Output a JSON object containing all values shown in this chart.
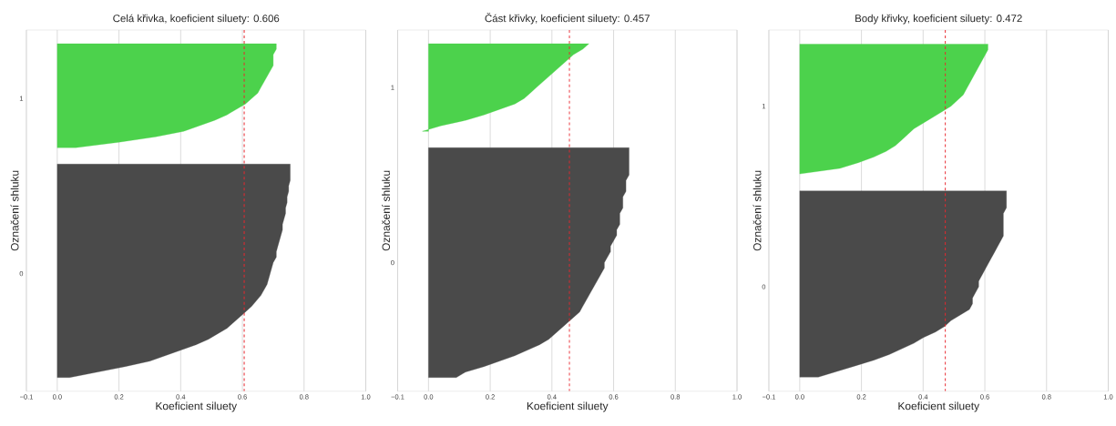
{
  "chart_data": [
    {
      "type": "area",
      "orientation": "horizontal",
      "title": "Celá křivka, koeficient siluety: 0.606",
      "xlabel": "Koeficient siluety",
      "ylabel": "Označení shluku",
      "categories": [
        null,
        null,
        null,
        null,
        null,
        null,
        null,
        null,
        null,
        null,
        null,
        null,
        "1",
        null,
        null,
        null,
        null,
        null,
        null,
        null,
        null,
        null,
        null,
        null,
        null,
        null,
        null,
        null,
        null,
        null,
        null,
        null,
        null,
        null,
        null,
        null,
        null,
        null,
        null,
        null,
        null,
        null,
        null,
        null,
        "0",
        null,
        null,
        null,
        null,
        null,
        null,
        null,
        null,
        null,
        null,
        null,
        null,
        null,
        null,
        null,
        null,
        null,
        null,
        null,
        null,
        null
      ],
      "series": [
        {
          "color": "#4cd24c",
          "values": [
            null,
            null,
            0.71,
            0.71,
            0.7,
            0.7,
            0.7,
            0.69,
            0.68,
            0.67,
            0.66,
            0.65,
            0.63,
            0.61,
            0.58,
            0.55,
            0.51,
            0.46,
            0.41,
            0.32,
            0.2,
            0.06,
            null,
            null,
            null,
            null,
            null,
            null,
            null,
            null,
            null,
            null,
            null,
            null,
            null,
            null,
            null,
            null,
            null,
            null,
            null,
            null,
            null,
            null,
            null,
            null,
            null,
            null,
            null,
            null,
            null,
            null,
            null,
            null,
            null,
            null,
            null,
            null,
            null,
            null,
            null,
            null,
            null,
            null,
            null,
            null
          ]
        },
        {
          "color": "#4a4a4a",
          "values": [
            null,
            null,
            null,
            null,
            null,
            null,
            null,
            null,
            null,
            null,
            null,
            null,
            null,
            null,
            null,
            null,
            null,
            null,
            null,
            null,
            null,
            null,
            null,
            null,
            0.755,
            0.755,
            0.755,
            0.755,
            0.75,
            0.75,
            0.745,
            0.745,
            0.74,
            0.74,
            0.735,
            0.73,
            0.73,
            0.725,
            0.72,
            0.715,
            0.71,
            0.71,
            0.7,
            0.695,
            0.69,
            0.685,
            0.68,
            0.67,
            0.66,
            0.645,
            0.63,
            0.61,
            0.59,
            0.57,
            0.55,
            0.52,
            0.49,
            0.45,
            0.4,
            0.35,
            0.3,
            0.22,
            0.13,
            0.04,
            null,
            null
          ]
        }
      ],
      "xlim": [
        -0.1,
        1.0
      ],
      "xticks": [
        {
          "value": -0.1,
          "label": "−0.1"
        },
        {
          "value": 0,
          "label": "0.0"
        },
        0.2,
        0.4,
        0.6,
        0.8,
        {
          "value": 1,
          "label": "1.0"
        }
      ],
      "grid": "x",
      "ref_lines": [
        {
          "axis": "x",
          "value": 0.606,
          "color": "#e8282f",
          "line_style": "dashed"
        }
      ]
    },
    {
      "type": "area",
      "orientation": "horizontal",
      "title": "Část křivky, koeficient siluety: 0.457",
      "xlabel": "Koeficient siluety",
      "ylabel": "Označení shluku",
      "categories": [
        null,
        null,
        null,
        null,
        null,
        null,
        null,
        null,
        null,
        null,
        "1",
        null,
        null,
        null,
        null,
        null,
        null,
        null,
        null,
        null,
        null,
        null,
        null,
        null,
        null,
        null,
        null,
        null,
        null,
        null,
        null,
        null,
        null,
        null,
        null,
        null,
        null,
        null,
        null,
        null,
        null,
        null,
        "0",
        null,
        null,
        null,
        null,
        null,
        null,
        null,
        null,
        null,
        null,
        null,
        null,
        null,
        null,
        null,
        null,
        null,
        null,
        null,
        null,
        null,
        null,
        null
      ],
      "series": [
        {
          "color": "#4cd24c",
          "values": [
            null,
            null,
            0.52,
            0.5,
            0.47,
            0.45,
            0.43,
            0.41,
            0.39,
            0.37,
            0.35,
            0.33,
            0.31,
            0.28,
            0.23,
            0.18,
            0.12,
            0.04,
            -0.02,
            null,
            null,
            null,
            null,
            null,
            null,
            null,
            null,
            null,
            null,
            null,
            null,
            null,
            null,
            null,
            null,
            null,
            null,
            null,
            null,
            null,
            null,
            null,
            null,
            null,
            null,
            null,
            null,
            null,
            null,
            null,
            null,
            null,
            null,
            null,
            null,
            null,
            null,
            null,
            null,
            null,
            null,
            null,
            null,
            null,
            null,
            null
          ]
        },
        {
          "color": "#4a4a4a",
          "values": [
            null,
            null,
            null,
            null,
            null,
            null,
            null,
            null,
            null,
            null,
            null,
            null,
            null,
            null,
            null,
            null,
            null,
            null,
            null,
            null,
            null,
            0.65,
            0.65,
            0.65,
            0.65,
            0.65,
            0.65,
            0.64,
            0.64,
            0.64,
            0.63,
            0.63,
            0.63,
            0.62,
            0.62,
            0.62,
            0.61,
            0.61,
            0.6,
            0.59,
            0.59,
            0.58,
            0.57,
            0.57,
            0.56,
            0.55,
            0.54,
            0.53,
            0.52,
            0.51,
            0.5,
            0.49,
            0.47,
            0.45,
            0.43,
            0.41,
            0.39,
            0.36,
            0.32,
            0.28,
            0.23,
            0.18,
            0.12,
            0.09,
            null,
            null
          ]
        }
      ],
      "xlim": [
        -0.1,
        1.0
      ],
      "xticks": [
        {
          "value": -0.1,
          "label": "−0.1"
        },
        {
          "value": 0,
          "label": "0.0"
        },
        0.2,
        0.4,
        0.6,
        0.8,
        {
          "value": 1,
          "label": "1.0"
        }
      ],
      "grid": "x",
      "ref_lines": [
        {
          "axis": "x",
          "value": 0.457,
          "color": "#e8282f",
          "line_style": "dashed"
        }
      ]
    },
    {
      "type": "area",
      "orientation": "horizontal",
      "title": "Body křivky, koeficient siluety: 0.472",
      "xlabel": "Koeficient siluety",
      "ylabel": "Označení shluku",
      "categories": [
        null,
        null,
        null,
        null,
        null,
        null,
        null,
        null,
        null,
        null,
        null,
        null,
        null,
        "1",
        null,
        null,
        null,
        null,
        null,
        null,
        null,
        null,
        null,
        null,
        null,
        null,
        null,
        null,
        null,
        null,
        null,
        null,
        null,
        null,
        null,
        null,
        null,
        null,
        null,
        null,
        null,
        null,
        null,
        null,
        null,
        "0",
        null,
        null,
        null,
        null,
        null,
        null,
        null,
        null,
        null,
        null,
        null,
        null,
        null,
        null,
        null,
        null,
        null,
        null
      ],
      "series": [
        {
          "color": "#4cd24c",
          "values": [
            null,
            null,
            0.61,
            0.61,
            0.6,
            0.59,
            0.58,
            0.57,
            0.56,
            0.55,
            0.54,
            0.53,
            0.51,
            0.49,
            0.46,
            0.43,
            0.4,
            0.37,
            0.35,
            0.33,
            0.31,
            0.28,
            0.24,
            0.19,
            0.13,
            0.0,
            null,
            null,
            null,
            null,
            null,
            null,
            null,
            null,
            null,
            null,
            null,
            null,
            null,
            null,
            null,
            null,
            null,
            null,
            null,
            null,
            null,
            null,
            null,
            null,
            null,
            null,
            null,
            null,
            null,
            null,
            null,
            null,
            null,
            null,
            null,
            null,
            null,
            null
          ]
        },
        {
          "color": "#4a4a4a",
          "values": [
            null,
            null,
            null,
            null,
            null,
            null,
            null,
            null,
            null,
            null,
            null,
            null,
            null,
            null,
            null,
            null,
            null,
            null,
            null,
            null,
            null,
            null,
            null,
            null,
            null,
            null,
            null,
            null,
            0.67,
            0.67,
            0.67,
            0.67,
            0.66,
            0.66,
            0.66,
            0.66,
            0.66,
            0.65,
            0.64,
            0.63,
            0.62,
            0.61,
            0.6,
            0.59,
            0.58,
            0.58,
            0.57,
            0.56,
            0.56,
            0.55,
            0.52,
            0.49,
            0.47,
            0.44,
            0.4,
            0.37,
            0.33,
            0.29,
            0.24,
            0.18,
            0.12,
            0.06,
            null,
            null
          ]
        }
      ],
      "xlim": [
        -0.1,
        1.0
      ],
      "xticks": [
        {
          "value": -0.1,
          "label": "−0.1"
        },
        {
          "value": 0,
          "label": "0.0"
        },
        0.2,
        0.4,
        0.6,
        0.8,
        {
          "value": 1,
          "label": "1.0"
        }
      ],
      "grid": "x",
      "ref_lines": [
        {
          "axis": "x",
          "value": 0.472,
          "color": "#e8282f",
          "line_style": "dashed"
        }
      ]
    }
  ]
}
